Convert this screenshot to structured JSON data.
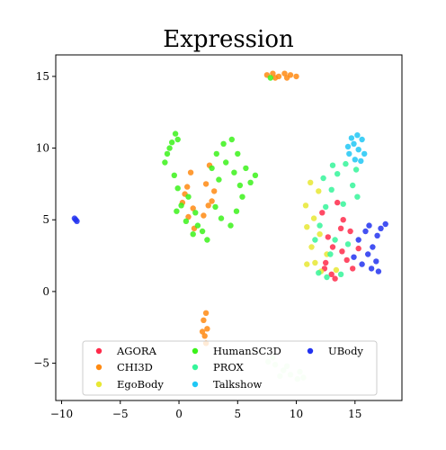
{
  "chart_data": {
    "type": "scatter",
    "title": "Expression",
    "xlabel": "",
    "ylabel": "",
    "xlim": [
      -10.5,
      19
    ],
    "ylim": [
      -7.6,
      16.5
    ],
    "xticks": [
      -10,
      -5,
      0,
      5,
      10,
      15
    ],
    "yticks": [
      -5,
      0,
      5,
      10,
      15
    ],
    "grid": false,
    "legend": {
      "placement": "lower-center",
      "columns": 3
    },
    "series": [
      {
        "name": "AGORA",
        "color": "#ff2a4a",
        "points": [
          [
            12.5,
            2.0
          ],
          [
            13.1,
            3.1
          ],
          [
            13.8,
            4.4
          ],
          [
            14.3,
            2.2
          ],
          [
            13.0,
            1.2
          ],
          [
            12.2,
            5.5
          ],
          [
            14.8,
            1.6
          ],
          [
            13.5,
            6.2
          ],
          [
            12.7,
            3.8
          ],
          [
            14.0,
            5.0
          ],
          [
            13.3,
            0.9
          ],
          [
            15.3,
            3.0
          ],
          [
            12.4,
            1.6
          ],
          [
            14.6,
            4.2
          ],
          [
            13.9,
            2.8
          ]
        ]
      },
      {
        "name": "CHI3D",
        "color": "#ff8a12",
        "points": [
          [
            7.5,
            15.1
          ],
          [
            8.0,
            15.2
          ],
          [
            8.5,
            15.0
          ],
          [
            9.0,
            15.2
          ],
          [
            9.5,
            15.1
          ],
          [
            10.0,
            15.0
          ],
          [
            8.2,
            14.9
          ],
          [
            9.2,
            14.9
          ],
          [
            1.0,
            8.3
          ],
          [
            0.7,
            7.3
          ],
          [
            0.3,
            6.2
          ],
          [
            0.8,
            5.2
          ],
          [
            1.3,
            4.4
          ],
          [
            0.5,
            6.8
          ],
          [
            1.2,
            5.8
          ],
          [
            2.6,
            8.8
          ],
          [
            2.3,
            7.5
          ],
          [
            2.8,
            6.3
          ],
          [
            2.1,
            5.3
          ],
          [
            3.0,
            7.0
          ],
          [
            2.5,
            6.0
          ],
          [
            2.3,
            -1.5
          ],
          [
            2.1,
            -2.0
          ],
          [
            2.4,
            -2.6
          ],
          [
            2.2,
            -3.1
          ],
          [
            2.3,
            -3.6
          ],
          [
            2.0,
            -2.8
          ]
        ]
      },
      {
        "name": "EgoBody",
        "color": "#e8e833",
        "points": [
          [
            10.9,
            4.5
          ],
          [
            11.3,
            3.1
          ],
          [
            11.6,
            2.0
          ],
          [
            10.8,
            6.0
          ],
          [
            11.2,
            7.6
          ],
          [
            11.5,
            5.1
          ],
          [
            12.1,
            1.4
          ],
          [
            12.6,
            2.6
          ],
          [
            13.4,
            1.5
          ],
          [
            11.9,
            7.0
          ],
          [
            10.9,
            1.9
          ],
          [
            12.0,
            4.0
          ]
        ]
      },
      {
        "name": "HumanSC3D",
        "color": "#3bf21a",
        "points": [
          [
            -1.0,
            9.6
          ],
          [
            -0.6,
            10.4
          ],
          [
            -0.3,
            11.0
          ],
          [
            -1.2,
            9.0
          ],
          [
            -0.8,
            10.0
          ],
          [
            -0.1,
            10.6
          ],
          [
            -0.4,
            8.1
          ],
          [
            -0.1,
            7.2
          ],
          [
            0.2,
            6.0
          ],
          [
            0.6,
            4.9
          ],
          [
            1.2,
            4.0
          ],
          [
            -0.2,
            5.6
          ],
          [
            0.8,
            6.6
          ],
          [
            1.6,
            4.6
          ],
          [
            1.4,
            5.5
          ],
          [
            3.2,
            9.6
          ],
          [
            3.8,
            10.3
          ],
          [
            4.5,
            10.6
          ],
          [
            2.8,
            8.6
          ],
          [
            4.0,
            9.0
          ],
          [
            5.0,
            9.6
          ],
          [
            5.7,
            8.6
          ],
          [
            6.1,
            7.6
          ],
          [
            5.4,
            6.6
          ],
          [
            4.9,
            5.6
          ],
          [
            4.4,
            4.6
          ],
          [
            3.6,
            5.1
          ],
          [
            3.1,
            5.9
          ],
          [
            3.4,
            7.8
          ],
          [
            2.0,
            4.2
          ],
          [
            2.4,
            3.6
          ],
          [
            6.5,
            8.1
          ],
          [
            5.2,
            7.4
          ],
          [
            4.7,
            8.3
          ],
          [
            7.8,
            14.9
          ]
        ]
      },
      {
        "name": "PROX",
        "color": "#35f59a",
        "points": [
          [
            11.6,
            3.6
          ],
          [
            12.0,
            4.6
          ],
          [
            12.5,
            5.9
          ],
          [
            13.0,
            7.1
          ],
          [
            13.5,
            8.2
          ],
          [
            14.2,
            8.9
          ],
          [
            15.1,
            8.5
          ],
          [
            14.8,
            7.4
          ],
          [
            14.0,
            6.1
          ],
          [
            13.3,
            3.6
          ],
          [
            13.8,
            1.2
          ],
          [
            12.9,
            2.6
          ],
          [
            11.9,
            1.3
          ],
          [
            14.4,
            3.3
          ],
          [
            13.1,
            8.8
          ],
          [
            12.3,
            7.9
          ],
          [
            15.2,
            6.6
          ],
          [
            12.6,
            1.0
          ]
        ]
      },
      {
        "name": "Talkshow",
        "color": "#20c7f5",
        "points": [
          [
            14.5,
            9.6
          ],
          [
            14.9,
            10.3
          ],
          [
            15.3,
            9.9
          ],
          [
            15.6,
            10.6
          ],
          [
            15.0,
            9.2
          ],
          [
            14.7,
            10.7
          ],
          [
            15.8,
            9.6
          ],
          [
            15.2,
            10.9
          ],
          [
            14.4,
            10.1
          ],
          [
            15.5,
            9.1
          ]
        ]
      },
      {
        "name": "UBody",
        "color": "#2232f0",
        "points": [
          [
            -8.9,
            5.1
          ],
          [
            -8.7,
            4.9
          ],
          [
            -8.8,
            5.0
          ],
          [
            15.3,
            3.6
          ],
          [
            16.1,
            2.6
          ],
          [
            16.9,
            3.9
          ],
          [
            16.4,
            1.6
          ],
          [
            15.6,
            1.9
          ],
          [
            17.2,
            4.4
          ],
          [
            17.6,
            4.7
          ],
          [
            16.8,
            2.1
          ],
          [
            15.9,
            4.2
          ],
          [
            16.5,
            3.1
          ],
          [
            14.9,
            2.4
          ],
          [
            17.0,
            1.4
          ],
          [
            16.2,
            4.6
          ]
        ]
      },
      {
        "name": "",
        "color": "#d3fdcf",
        "points": [
          [
            7.6,
            -4.9
          ],
          [
            8.2,
            -5.1
          ],
          [
            8.9,
            -5.5
          ],
          [
            9.5,
            -5.8
          ],
          [
            10.1,
            -6.1
          ],
          [
            10.6,
            -6.0
          ],
          [
            8.0,
            -4.6
          ],
          [
            9.2,
            -5.2
          ],
          [
            10.3,
            -5.6
          ],
          [
            8.6,
            -5.9
          ]
        ]
      }
    ]
  }
}
